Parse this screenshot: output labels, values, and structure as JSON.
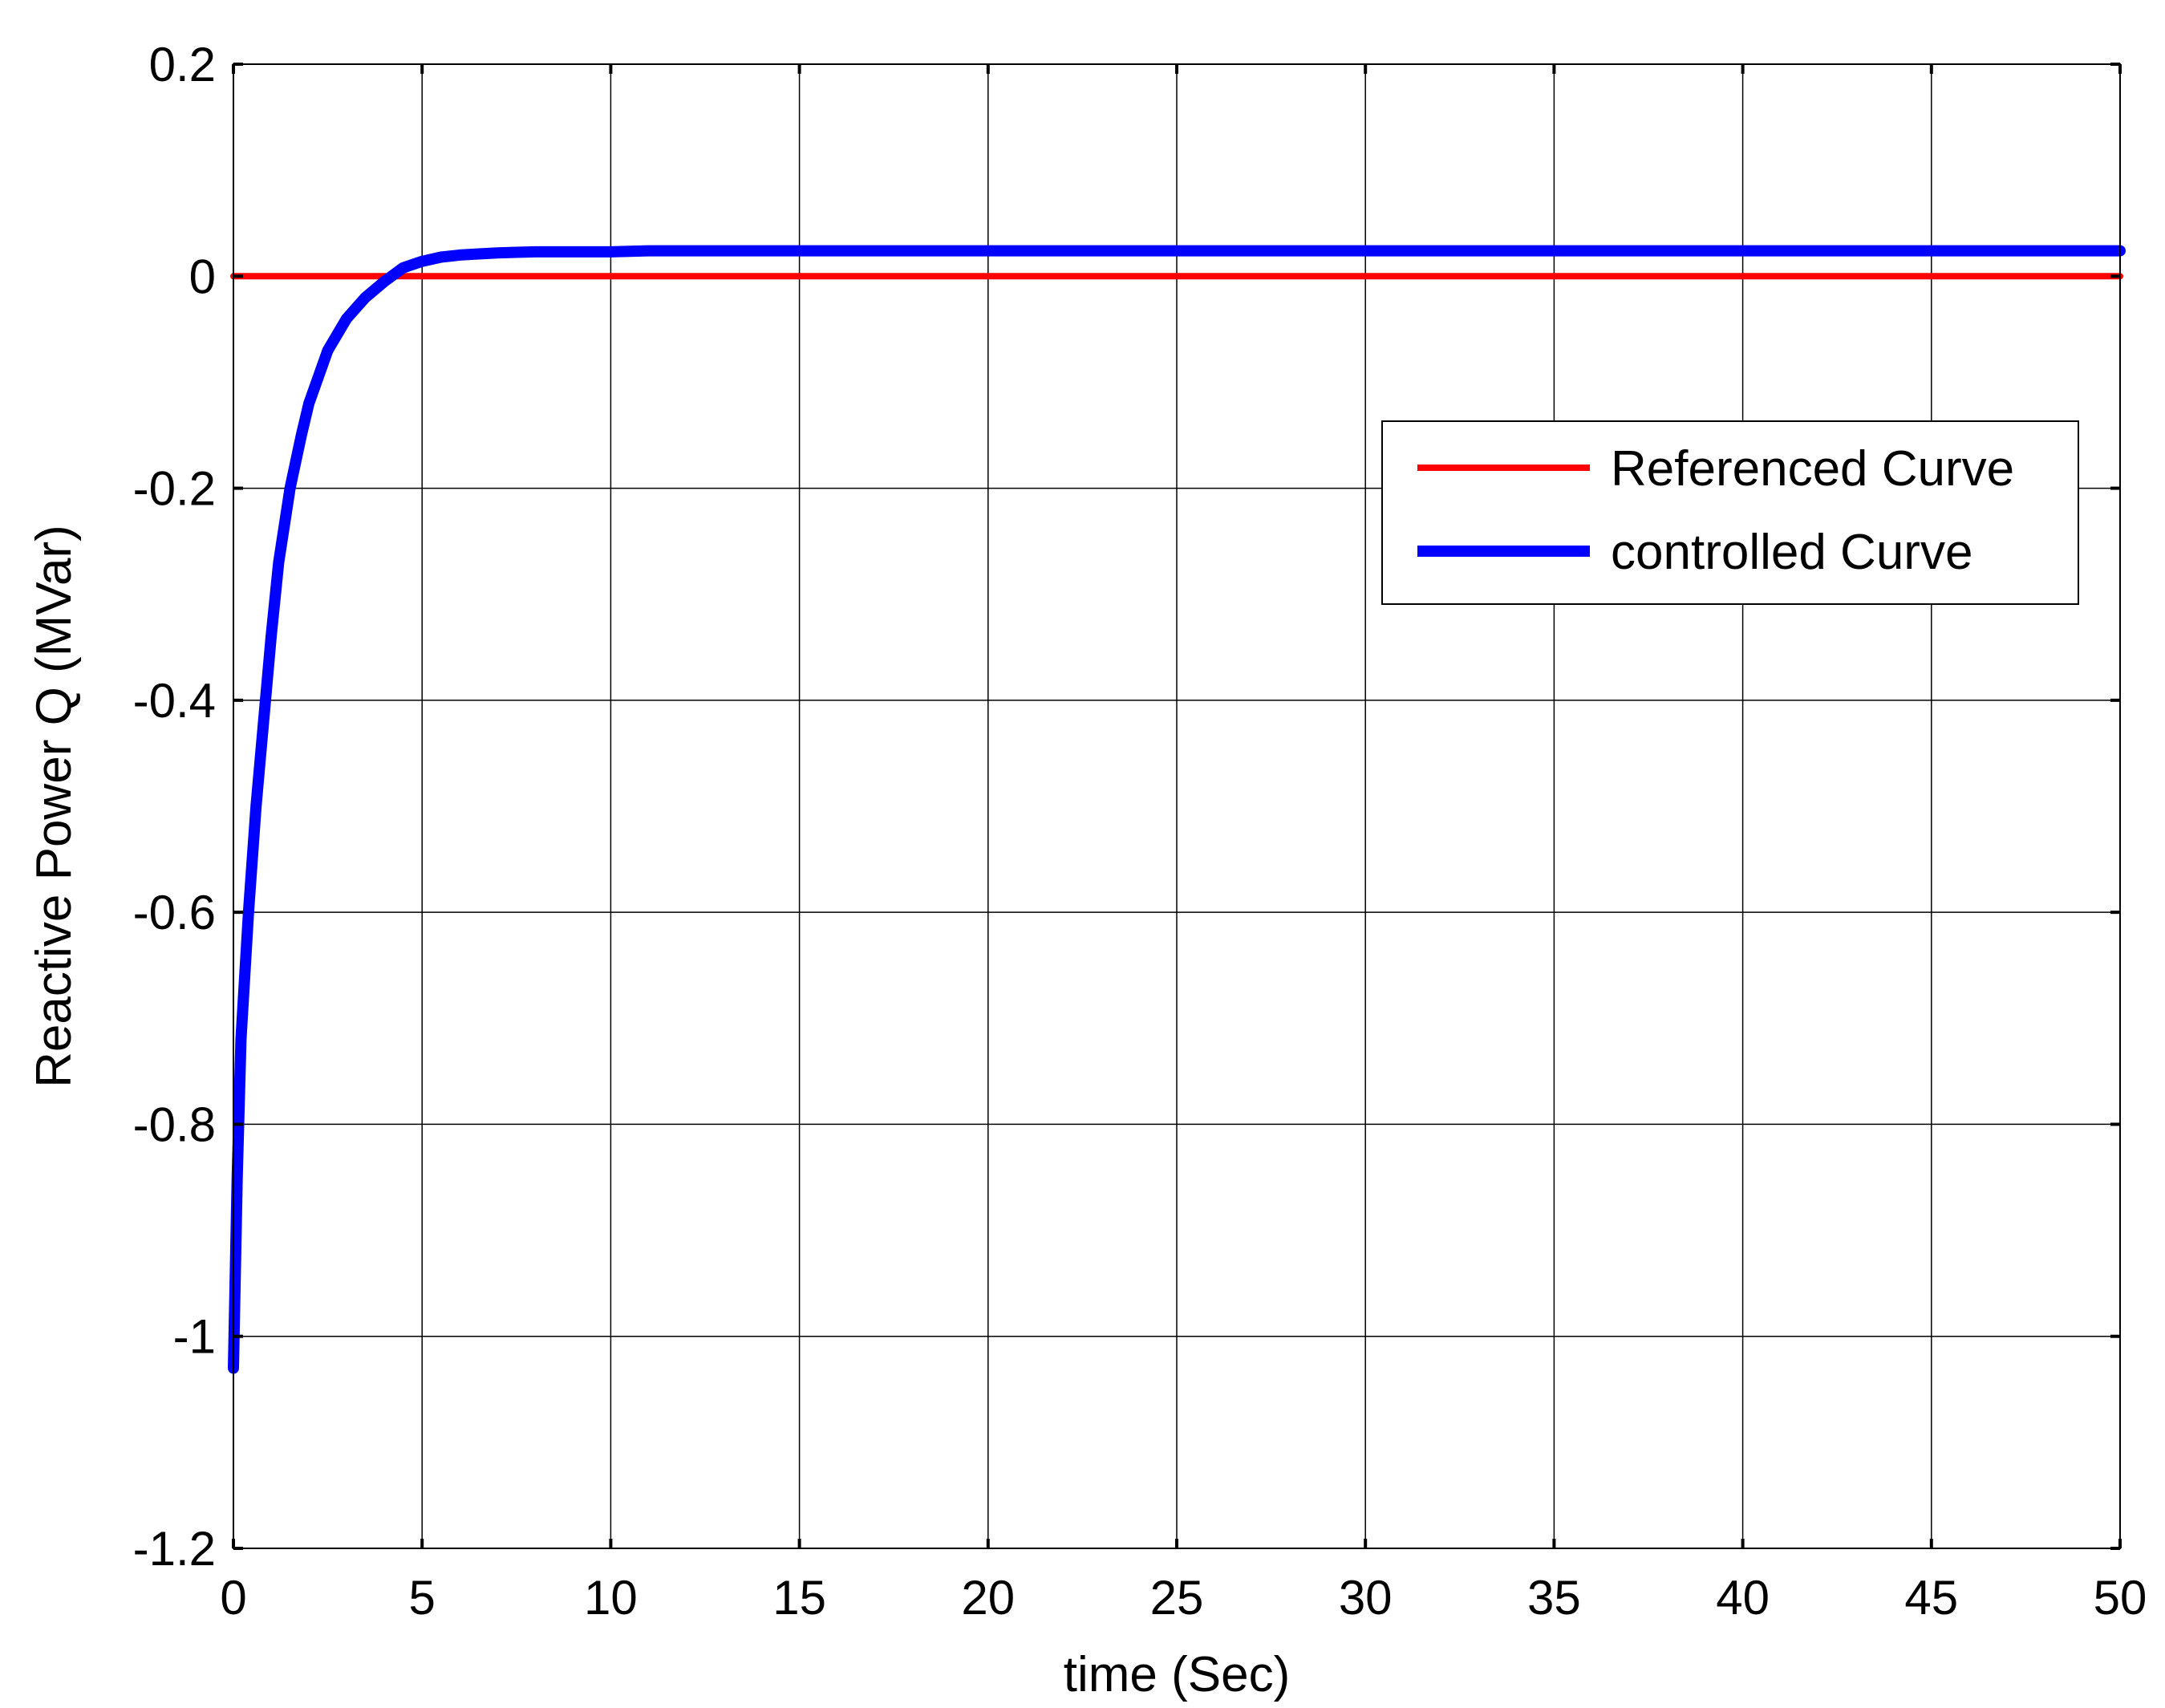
{
  "chart_data": {
    "type": "line",
    "title": "",
    "xlabel": "time (Sec)",
    "ylabel": "Reactive Power Q (MVar)",
    "xlim": [
      0,
      50
    ],
    "ylim": [
      -1.2,
      0.2
    ],
    "xticks": [
      0,
      5,
      10,
      15,
      20,
      25,
      30,
      35,
      40,
      45,
      50
    ],
    "yticks": [
      -1.2,
      -1,
      -0.8,
      -0.6,
      -0.4,
      -0.2,
      0,
      0.2
    ],
    "xtick_labels": [
      "0",
      "5",
      "10",
      "15",
      "20",
      "25",
      "30",
      "35",
      "40",
      "45",
      "50"
    ],
    "ytick_labels": [
      "-1.2",
      "-1",
      "-0.8",
      "-0.6",
      "-0.4",
      "-0.2",
      "0",
      "0.2"
    ],
    "grid": true,
    "legend_position": "top-right",
    "series": [
      {
        "name": "Referenced Curve",
        "color": "#ff0000",
        "x": [
          0,
          50
        ],
        "y": [
          0,
          0
        ]
      },
      {
        "name": "controlled Curve",
        "color": "#0000ff",
        "x": [
          0,
          0.1,
          0.2,
          0.4,
          0.6,
          0.8,
          1.0,
          1.2,
          1.5,
          1.8,
          2.0,
          2.5,
          3.0,
          3.5,
          4.0,
          4.5,
          5.0,
          5.5,
          6.0,
          6.5,
          7.0,
          8.0,
          9.0,
          10.0,
          11.0,
          12.0,
          15.0,
          20.0,
          25.0,
          30.0,
          35.0,
          40.0,
          45.0,
          50.0
        ],
        "y": [
          -1.03,
          -0.85,
          -0.72,
          -0.6,
          -0.5,
          -0.42,
          -0.34,
          -0.27,
          -0.2,
          -0.15,
          -0.12,
          -0.07,
          -0.04,
          -0.02,
          -0.005,
          0.008,
          0.014,
          0.018,
          0.02,
          0.021,
          0.022,
          0.023,
          0.023,
          0.023,
          0.024,
          0.024,
          0.024,
          0.024,
          0.024,
          0.024,
          0.024,
          0.024,
          0.024,
          0.024
        ]
      }
    ]
  }
}
